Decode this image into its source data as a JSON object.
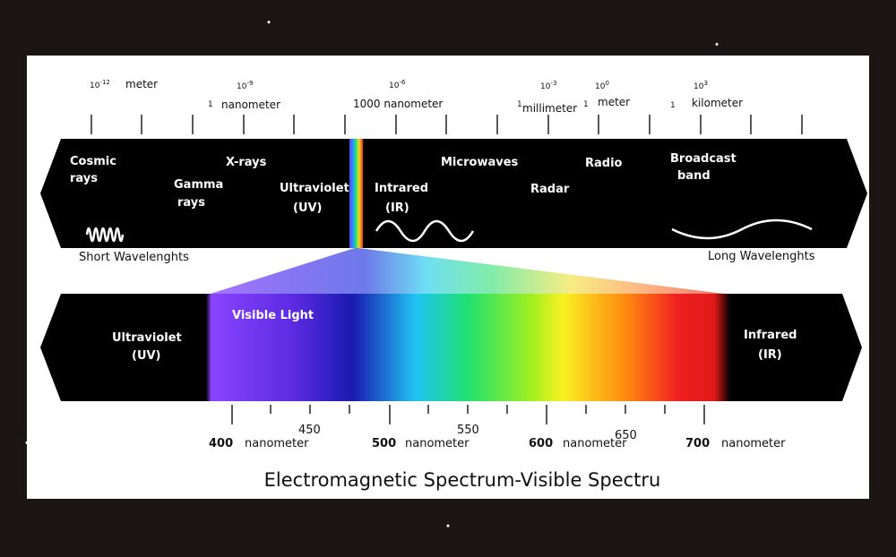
{
  "top_scale": [
    {
      "power": {
        "base": "10",
        "exp": "-12"
      },
      "unit": "meter"
    },
    {
      "power": {
        "base": "10",
        "exp": "-9"
      },
      "prefix": "1",
      "unit": "nanometer"
    },
    {
      "power": {
        "base": "10",
        "exp": "-6"
      },
      "unit": "1000 nanometer"
    },
    {
      "power": {
        "base": "10",
        "exp": "-3"
      },
      "prefix": "1",
      "unit": "millimeter",
      "suffix": "1"
    },
    {
      "power": {
        "base": "10",
        "exp": "0"
      },
      "unit": "meter"
    },
    {
      "power": {
        "base": "10",
        "exp": "3"
      },
      "prefix": "1",
      "unit": "kilometer"
    }
  ],
  "spectrum_band": {
    "cosmic_rays": [
      "Cosmic",
      "rays"
    ],
    "gamma_rays": [
      "Gamma",
      "rays"
    ],
    "x_rays": "X-rays",
    "ultraviolet": [
      "Ultraviolet",
      "(UV)"
    ],
    "infrared": [
      "Intrared",
      "(IR)"
    ],
    "microwaves": "Microwaves",
    "radar": "Radar",
    "radio": "Radio",
    "broadcast": [
      "Broadcast",
      "band"
    ]
  },
  "short_label": "Short Wavelenghts",
  "long_label": "Long Wavelenghts",
  "visible_band": {
    "ultraviolet": [
      "Ultraviolet",
      "(UV)"
    ],
    "visible": "Visible Light",
    "infrared": [
      "Infrared",
      "(IR)"
    ]
  },
  "bottom_scale": [
    {
      "number": "400",
      "unit": "nanometer"
    },
    {
      "number": "450"
    },
    {
      "number": "500",
      "unit": "nanometer"
    },
    {
      "number": "550"
    },
    {
      "number": "600",
      "unit": "nanometer"
    },
    {
      "number": "650"
    },
    {
      "number": "700",
      "unit": "nanometer"
    }
  ],
  "title": "Electromagnetic Spectrum-Visible Spectru"
}
